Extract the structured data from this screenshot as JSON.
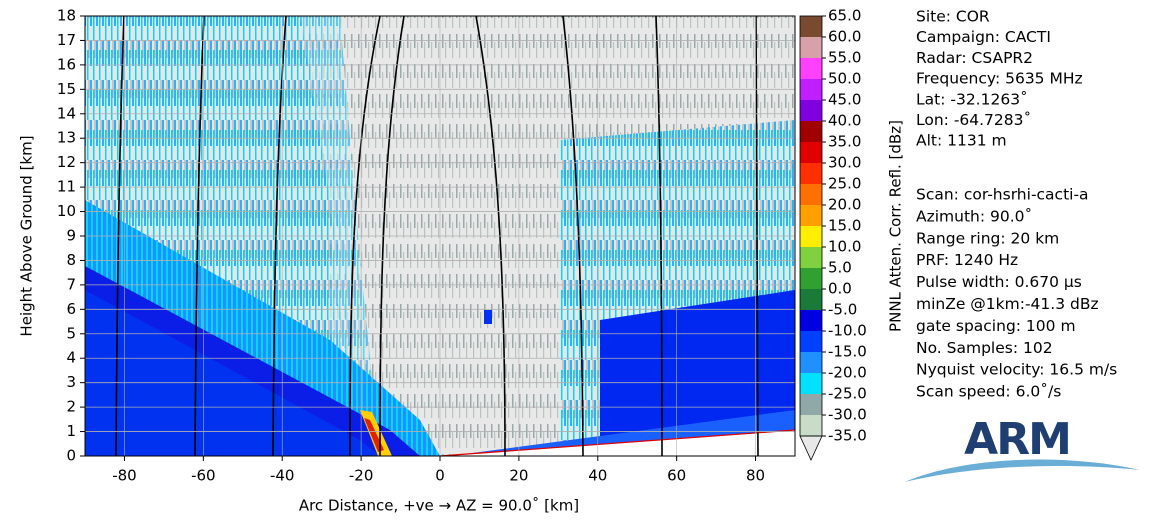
{
  "chart_data": {
    "type": "rhi",
    "xlabel": "Arc Distance, +ve → AZ = 90.0˚ [km]",
    "ylabel": "Height Above Ground [km]",
    "xlim": [
      -90,
      90
    ],
    "xticks": [
      -80,
      -60,
      -40,
      -20,
      0,
      20,
      40,
      60,
      80
    ],
    "ylim": [
      0,
      18
    ],
    "yticks": [
      0,
      1,
      2,
      3,
      4,
      5,
      6,
      7,
      8,
      9,
      10,
      11,
      12,
      13,
      14,
      15,
      16,
      17,
      18
    ],
    "grid": true,
    "colorbar": {
      "label": "PNNL Atten. Corr. Refl. [dBz]",
      "lim": [
        -35,
        65
      ],
      "ticks": [
        {
          "value": 65,
          "label": "65.0"
        },
        {
          "value": 60,
          "label": "60.0"
        },
        {
          "value": 55,
          "label": "55.0"
        },
        {
          "value": 50,
          "label": "50.0"
        },
        {
          "value": 45,
          "label": "45.0"
        },
        {
          "value": 40,
          "label": "40.0"
        },
        {
          "value": 35,
          "label": "35.0"
        },
        {
          "value": 30,
          "label": "30.0"
        },
        {
          "value": 25,
          "label": "25.0"
        },
        {
          "value": 20,
          "label": "20.0"
        },
        {
          "value": 15,
          "label": "15.0"
        },
        {
          "value": 10,
          "label": "10.0"
        },
        {
          "value": 5,
          "label": "5.0"
        },
        {
          "value": 0,
          "label": "0.0"
        },
        {
          "value": -5,
          "label": "-5.0"
        },
        {
          "value": -10,
          "label": "-10.0"
        },
        {
          "value": -15,
          "label": "-15.0"
        },
        {
          "value": -20,
          "label": "-20.0"
        },
        {
          "value": -25,
          "label": "-25.0"
        },
        {
          "value": -30,
          "label": "-30.0"
        },
        {
          "value": -35,
          "label": "-35.0"
        }
      ],
      "colors": [
        "#7a4a30",
        "#d8a0a8",
        "#ff40ff",
        "#c020ff",
        "#8000e0",
        "#a00000",
        "#e00000",
        "#ff3000",
        "#ff7000",
        "#ffa000",
        "#ffee00",
        "#80d040",
        "#30a030",
        "#1a7a3a",
        "#0000e0",
        "#0040ff",
        "#2090ff",
        "#00e0ff",
        "#90a8a8",
        "#c8dcc8"
      ],
      "under_color": "#e8e8e8"
    },
    "info": [
      "Site: COR",
      "Campaign: CACTI",
      "Radar: CSAPR2",
      "Frequency: 5635 MHz",
      "Lat: -32.1263˚",
      "Lon: -64.7283˚",
      "Alt: 1131 m"
    ],
    "scan_info": [
      "Scan: cor-hsrhi-cacti-a",
      "Azimuth: 90.0˚",
      "Range ring: 20 km",
      "PRF: 1240 Hz",
      "Pulse width: 0.670 μs",
      "minZe @1km:-41.3 dBz",
      "gate spacing: 100 m",
      "No. Samples: 102",
      "Nyquist velocity: 16.5 m/s",
      "Scan speed: 6.0˚/s"
    ],
    "logo": "ARM"
  }
}
